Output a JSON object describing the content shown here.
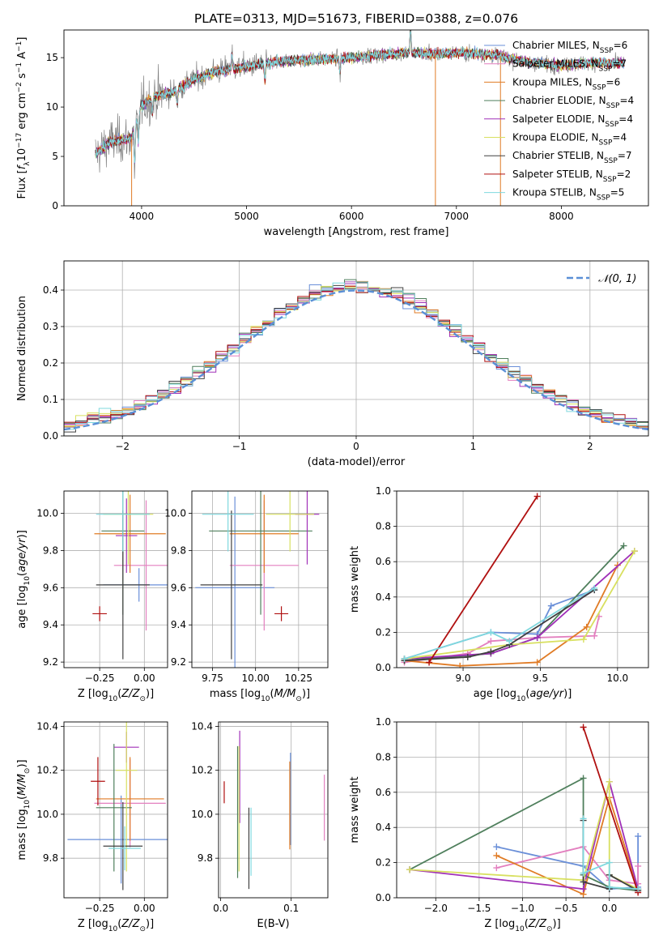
{
  "figure_title": "PLATE=0313, MJD=51673, FIBERID=0388, z=0.076",
  "chart_data": [
    {
      "id": "spectrum",
      "type": "line",
      "xlabel": "wavelength [Angstrom, rest frame]",
      "ylabel": "Flux [f_λ 10^-17 erg cm^-2 s^-1 A^-1]",
      "xlim": [
        3260,
        8830
      ],
      "ylim": [
        0,
        17.8
      ],
      "xticks": [
        4000,
        5000,
        6000,
        7000,
        8000
      ],
      "yticks": [
        0,
        5,
        10,
        15
      ],
      "grid": false,
      "legend_position": "upper-right",
      "legend": [
        {
          "label": "Chabrier MILES, N_SSP=6",
          "color": "#6a8fd8"
        },
        {
          "label": "Salpeter MILES, N_SSP=7",
          "color": "#e37fbf"
        },
        {
          "label": "Kroupa MILES, N_SSP=6",
          "color": "#e07b25"
        },
        {
          "label": "Chabrier ELODIE, N_SSP=4",
          "color": "#4f7f5c"
        },
        {
          "label": "Salpeter ELODIE, N_SSP=4",
          "color": "#a030b8"
        },
        {
          "label": "Kroupa ELODIE, N_SSP=4",
          "color": "#d8e060"
        },
        {
          "label": "Chabrier STELIB, N_SSP=7",
          "color": "#404040"
        },
        {
          "label": "Salpeter STELIB, N_SSP=2",
          "color": "#b01010"
        },
        {
          "label": "Kroupa STELIB, N_SSP=5",
          "color": "#7fd8de"
        }
      ],
      "observed_color": "#808080",
      "continuum_nodes": [
        [
          3560,
          5.2
        ],
        [
          3700,
          6.5
        ],
        [
          3900,
          6.8
        ],
        [
          4000,
          10.2
        ],
        [
          4150,
          11.2
        ],
        [
          4300,
          11.5
        ],
        [
          4500,
          12.8
        ],
        [
          4700,
          13.6
        ],
        [
          5000,
          14.1
        ],
        [
          5300,
          14.6
        ],
        [
          5600,
          14.8
        ],
        [
          5900,
          14.9
        ],
        [
          6200,
          15.2
        ],
        [
          6500,
          15.5
        ],
        [
          6800,
          15.4
        ],
        [
          7100,
          15.5
        ],
        [
          7400,
          15.2
        ],
        [
          7700,
          14.5
        ],
        [
          8000,
          14.2
        ],
        [
          8300,
          14.5
        ],
        [
          8600,
          14.4
        ]
      ]
    },
    {
      "id": "residuals",
      "type": "histogram",
      "xlabel": "(data-model)/error",
      "ylabel": "Normed distribution",
      "xlim": [
        -2.5,
        2.5
      ],
      "ylim": [
        0,
        0.48
      ],
      "xticks": [
        -2,
        -1,
        0,
        1,
        2
      ],
      "yticks": [
        0.0,
        0.1,
        0.2,
        0.3,
        0.4
      ],
      "grid": true,
      "legend": [
        {
          "label": "N(0,1)",
          "color": "#5a8fd6",
          "style": "dashed"
        }
      ],
      "bin_width": 0.1,
      "model": "standard normal"
    },
    {
      "id": "age_vs_Z",
      "type": "errorbar",
      "xlabel": "Z [log10(Z/Z_sun)]",
      "ylabel": "age [log10(age/yr)]",
      "xlim": [
        -0.45,
        0.13
      ],
      "ylim": [
        9.17,
        10.12
      ],
      "xticks": [
        -0.25,
        0.0
      ],
      "yticks": [
        9.2,
        9.4,
        9.6,
        9.8,
        10.0
      ],
      "grid": true,
      "points": [
        {
          "x": -0.03,
          "xerr": 0.2,
          "y": 9.615,
          "yerr": 0.09,
          "color": "#6a8fd8"
        },
        {
          "x": 0.01,
          "xerr": 0.18,
          "y": 9.72,
          "yerr": 0.35,
          "color": "#e37fbf"
        },
        {
          "x": -0.08,
          "xerr": 0.2,
          "y": 9.89,
          "yerr": 0.21,
          "color": "#e07b25"
        },
        {
          "x": -0.12,
          "xerr": 0.12,
          "y": 9.905,
          "yerr": 0.45,
          "color": "#4f7f5c"
        },
        {
          "x": -0.1,
          "xerr": 0.06,
          "y": 9.88,
          "yerr": 0.2,
          "color": "#a030b8"
        },
        {
          "x": -0.09,
          "xerr": 0.14,
          "y": 9.995,
          "yerr": 0.27,
          "color": "#d8e060"
        },
        {
          "x": -0.12,
          "xerr": 0.15,
          "y": 9.615,
          "yerr": 0.4,
          "color": "#404040"
        },
        {
          "x": -0.25,
          "xerr": 0.04,
          "y": 9.46,
          "yerr": 0.04,
          "color": "#b01010"
        },
        {
          "x": -0.12,
          "xerr": 0.15,
          "y": 9.995,
          "yerr": 0.2,
          "color": "#7fd8de"
        }
      ]
    },
    {
      "id": "age_vs_mass",
      "type": "errorbar",
      "xlabel": "mass [log10(M/M_sun)]",
      "ylabel": "",
      "xlim": [
        9.63,
        10.42
      ],
      "ylim": [
        9.17,
        10.12
      ],
      "xticks": [
        9.75,
        10.0,
        10.25
      ],
      "yticks": [
        9.2,
        9.4,
        9.6,
        9.8,
        10.0
      ],
      "grid": true,
      "points": [
        {
          "x": 9.88,
          "xerr": 0.23,
          "y": 9.6,
          "yerr": 0.49,
          "color": "#6a8fd8"
        },
        {
          "x": 10.05,
          "xerr": 0.2,
          "y": 9.72,
          "yerr": 0.35,
          "color": "#e37fbf"
        },
        {
          "x": 10.05,
          "xerr": 0.2,
          "y": 9.89,
          "yerr": 0.21,
          "color": "#e07b25"
        },
        {
          "x": 10.03,
          "xerr": 0.3,
          "y": 9.905,
          "yerr": 0.45,
          "color": "#4f7f5c"
        },
        {
          "x": 10.3,
          "xerr": 0.07,
          "y": 9.995,
          "yerr": 0.27,
          "color": "#a030b8"
        },
        {
          "x": 10.2,
          "xerr": 0.14,
          "y": 9.995,
          "yerr": 0.2,
          "color": "#d8e060"
        },
        {
          "x": 9.86,
          "xerr": 0.18,
          "y": 9.615,
          "yerr": 0.4,
          "color": "#404040"
        },
        {
          "x": 10.15,
          "xerr": 0.04,
          "y": 9.46,
          "yerr": 0.04,
          "color": "#b01010"
        },
        {
          "x": 9.84,
          "xerr": 0.15,
          "y": 9.995,
          "yerr": 0.2,
          "color": "#7fd8de"
        }
      ]
    },
    {
      "id": "weight_vs_age",
      "type": "line",
      "xlabel": "age [log10(age/yr)]",
      "ylabel": "mass weight",
      "xlim": [
        8.57,
        10.2
      ],
      "ylim": [
        0,
        1
      ],
      "xticks": [
        9.0,
        9.5,
        10.0
      ],
      "yticks": [
        0.0,
        0.2,
        0.4,
        0.6,
        0.8,
        1.0
      ],
      "grid": true,
      "series": [
        {
          "color": "#6a8fd8",
          "points": [
            [
              8.62,
              0.05
            ],
            [
              9.18,
              0.2
            ],
            [
              9.48,
              0.19
            ],
            [
              9.57,
              0.35
            ],
            [
              9.85,
              0.44
            ]
          ]
        },
        {
          "color": "#e37fbf",
          "points": [
            [
              8.62,
              0.03
            ],
            [
              9.03,
              0.08
            ],
            [
              9.18,
              0.15
            ],
            [
              9.48,
              0.17
            ],
            [
              9.85,
              0.18
            ],
            [
              9.88,
              0.29
            ]
          ]
        },
        {
          "color": "#e07b25",
          "points": [
            [
              8.62,
              0.04
            ],
            [
              8.98,
              0.01
            ],
            [
              9.48,
              0.03
            ],
            [
              9.8,
              0.23
            ],
            [
              10.0,
              0.58
            ]
          ]
        },
        {
          "color": "#4f7f5c",
          "points": [
            [
              8.62,
              0.04
            ],
            [
              9.18,
              0.08
            ],
            [
              9.48,
              0.17
            ],
            [
              10.04,
              0.69
            ]
          ]
        },
        {
          "color": "#a030b8",
          "points": [
            [
              8.62,
              0.05
            ],
            [
              9.18,
              0.08
            ],
            [
              9.48,
              0.17
            ],
            [
              10.11,
              0.66
            ]
          ]
        },
        {
          "color": "#d8e060",
          "points": [
            [
              8.62,
              0.05
            ],
            [
              9.3,
              0.13
            ],
            [
              9.78,
              0.16
            ],
            [
              10.11,
              0.66
            ]
          ]
        },
        {
          "color": "#404040",
          "points": [
            [
              8.62,
              0.04
            ],
            [
              9.03,
              0.06
            ],
            [
              9.18,
              0.09
            ],
            [
              9.3,
              0.13
            ],
            [
              9.85,
              0.44
            ]
          ]
        },
        {
          "color": "#b01010",
          "points": [
            [
              8.78,
              0.03
            ],
            [
              9.48,
              0.97
            ]
          ]
        },
        {
          "color": "#7fd8de",
          "points": [
            [
              8.62,
              0.05
            ],
            [
              9.18,
              0.2
            ],
            [
              9.3,
              0.15
            ],
            [
              9.85,
              0.45
            ]
          ]
        }
      ]
    },
    {
      "id": "mass_vs_Z",
      "type": "errorbar",
      "xlabel": "Z [log10(Z/Z_sun)]",
      "ylabel": "mass [log10(M/M_sun)]",
      "xlim": [
        -0.45,
        0.13
      ],
      "ylim": [
        9.62,
        10.42
      ],
      "xticks": [
        -0.25,
        0.0
      ],
      "yticks": [
        9.8,
        10.0,
        10.2,
        10.4
      ],
      "grid": true,
      "points": [
        {
          "x": -0.13,
          "xerr": 0.3,
          "y": 9.885,
          "yerr": 0.2,
          "color": "#6a8fd8"
        },
        {
          "x": -0.08,
          "xerr": 0.2,
          "y": 10.05,
          "yerr": 0.2,
          "color": "#e37fbf"
        },
        {
          "x": -0.08,
          "xerr": 0.19,
          "y": 10.07,
          "yerr": 0.19,
          "color": "#e07b25"
        },
        {
          "x": -0.17,
          "xerr": 0.1,
          "y": 10.03,
          "yerr": 0.29,
          "color": "#4f7f5c"
        },
        {
          "x": -0.1,
          "xerr": 0.07,
          "y": 10.305,
          "yerr": 0.07,
          "color": "#a030b8"
        },
        {
          "x": -0.1,
          "xerr": 0.06,
          "y": 10.2,
          "yerr": 0.46,
          "color": "#d8e060"
        },
        {
          "x": -0.12,
          "xerr": 0.11,
          "y": 9.855,
          "yerr": 0.2,
          "color": "#404040"
        },
        {
          "x": -0.26,
          "xerr": 0.04,
          "y": 10.15,
          "yerr": 0.11,
          "color": "#b01010"
        },
        {
          "x": -0.11,
          "xerr": 0.09,
          "y": 9.845,
          "yerr": 0.1,
          "color": "#7fd8de"
        }
      ]
    },
    {
      "id": "mass_vs_ebv",
      "type": "errorbar",
      "xlabel": "E(B-V)",
      "ylabel": "",
      "xlim": [
        -0.003,
        0.152
      ],
      "ylim": [
        9.62,
        10.42
      ],
      "xticks": [
        0.0,
        0.1
      ],
      "yticks": [
        9.8,
        10.0,
        10.2,
        10.4
      ],
      "grid": true,
      "points": [
        {
          "x": 0.099,
          "y": 10.04,
          "ylow": 9.86,
          "yhigh": 10.28,
          "color": "#6a8fd8"
        },
        {
          "x": 0.147,
          "y": 10.03,
          "ylow": 9.88,
          "yhigh": 10.18,
          "color": "#e37fbf"
        },
        {
          "x": 0.098,
          "y": 10.04,
          "ylow": 9.84,
          "yhigh": 10.24,
          "color": "#e07b25"
        },
        {
          "x": 0.024,
          "y": 10.02,
          "ylow": 9.71,
          "yhigh": 10.31,
          "color": "#4f7f5c"
        },
        {
          "x": 0.027,
          "y": 10.12,
          "ylow": 9.96,
          "yhigh": 10.38,
          "color": "#a030b8"
        },
        {
          "x": 0.026,
          "y": 10.0,
          "ylow": 9.74,
          "yhigh": 10.31,
          "color": "#d8e060"
        },
        {
          "x": 0.04,
          "y": 9.86,
          "ylow": 9.66,
          "yhigh": 10.03,
          "color": "#404040"
        },
        {
          "x": 0.005,
          "y": 10.1,
          "ylow": 10.05,
          "yhigh": 10.15,
          "color": "#b01010"
        },
        {
          "x": 0.043,
          "y": 9.88,
          "ylow": 9.72,
          "yhigh": 10.03,
          "color": "#7fd8de"
        }
      ]
    },
    {
      "id": "weight_vs_Z",
      "type": "line",
      "xlabel": "Z [log10(Z/Z_sun)]",
      "ylabel": "mass weight",
      "xlim": [
        -2.45,
        0.45
      ],
      "ylim": [
        0,
        1
      ],
      "xticks": [
        -2.0,
        -1.5,
        -1.0,
        -0.5,
        0.0
      ],
      "yticks": [
        0.0,
        0.2,
        0.4,
        0.6,
        0.8,
        1.0
      ],
      "grid": true,
      "series": [
        {
          "color": "#6a8fd8",
          "points": [
            [
              -1.3,
              0.29
            ],
            [
              -0.3,
              0.18
            ],
            [
              0.0,
              0.05
            ],
            [
              0.33,
              0.06
            ],
            [
              0.33,
              0.35
            ]
          ]
        },
        {
          "color": "#e37fbf",
          "points": [
            [
              -1.3,
              0.17
            ],
            [
              -0.3,
              0.29
            ],
            [
              0.0,
              0.1
            ],
            [
              0.33,
              0.08
            ],
            [
              0.33,
              0.18
            ]
          ]
        },
        {
          "color": "#e07b25",
          "points": [
            [
              -1.3,
              0.24
            ],
            [
              -0.3,
              0.02
            ],
            [
              0.0,
              0.57
            ],
            [
              0.33,
              0.05
            ]
          ]
        },
        {
          "color": "#4f7f5c",
          "points": [
            [
              -2.3,
              0.16
            ],
            [
              -0.3,
              0.68
            ],
            [
              -0.3,
              0.13
            ],
            [
              0.0,
              0.06
            ],
            [
              0.33,
              0.04
            ]
          ]
        },
        {
          "color": "#a030b8",
          "points": [
            [
              -2.3,
              0.16
            ],
            [
              -0.3,
              0.05
            ],
            [
              0.0,
              0.66
            ],
            [
              0.33,
              0.05
            ]
          ]
        },
        {
          "color": "#d8e060",
          "points": [
            [
              -2.3,
              0.16
            ],
            [
              -0.3,
              0.1
            ],
            [
              0.0,
              0.66
            ],
            [
              0.0,
              0.13
            ],
            [
              0.33,
              0.05
            ]
          ]
        },
        {
          "color": "#404040",
          "points": [
            [
              -0.3,
              0.44
            ],
            [
              -0.3,
              0.09
            ],
            [
              0.0,
              0.05
            ],
            [
              0.0,
              0.13
            ],
            [
              0.33,
              0.04
            ]
          ]
        },
        {
          "color": "#b01010",
          "points": [
            [
              -0.3,
              0.97
            ],
            [
              0.33,
              0.03
            ]
          ]
        },
        {
          "color": "#7fd8de",
          "points": [
            [
              -0.3,
              0.45
            ],
            [
              -0.3,
              0.14
            ],
            [
              0.0,
              0.2
            ],
            [
              0.0,
              0.06
            ],
            [
              0.33,
              0.05
            ]
          ]
        }
      ]
    }
  ]
}
